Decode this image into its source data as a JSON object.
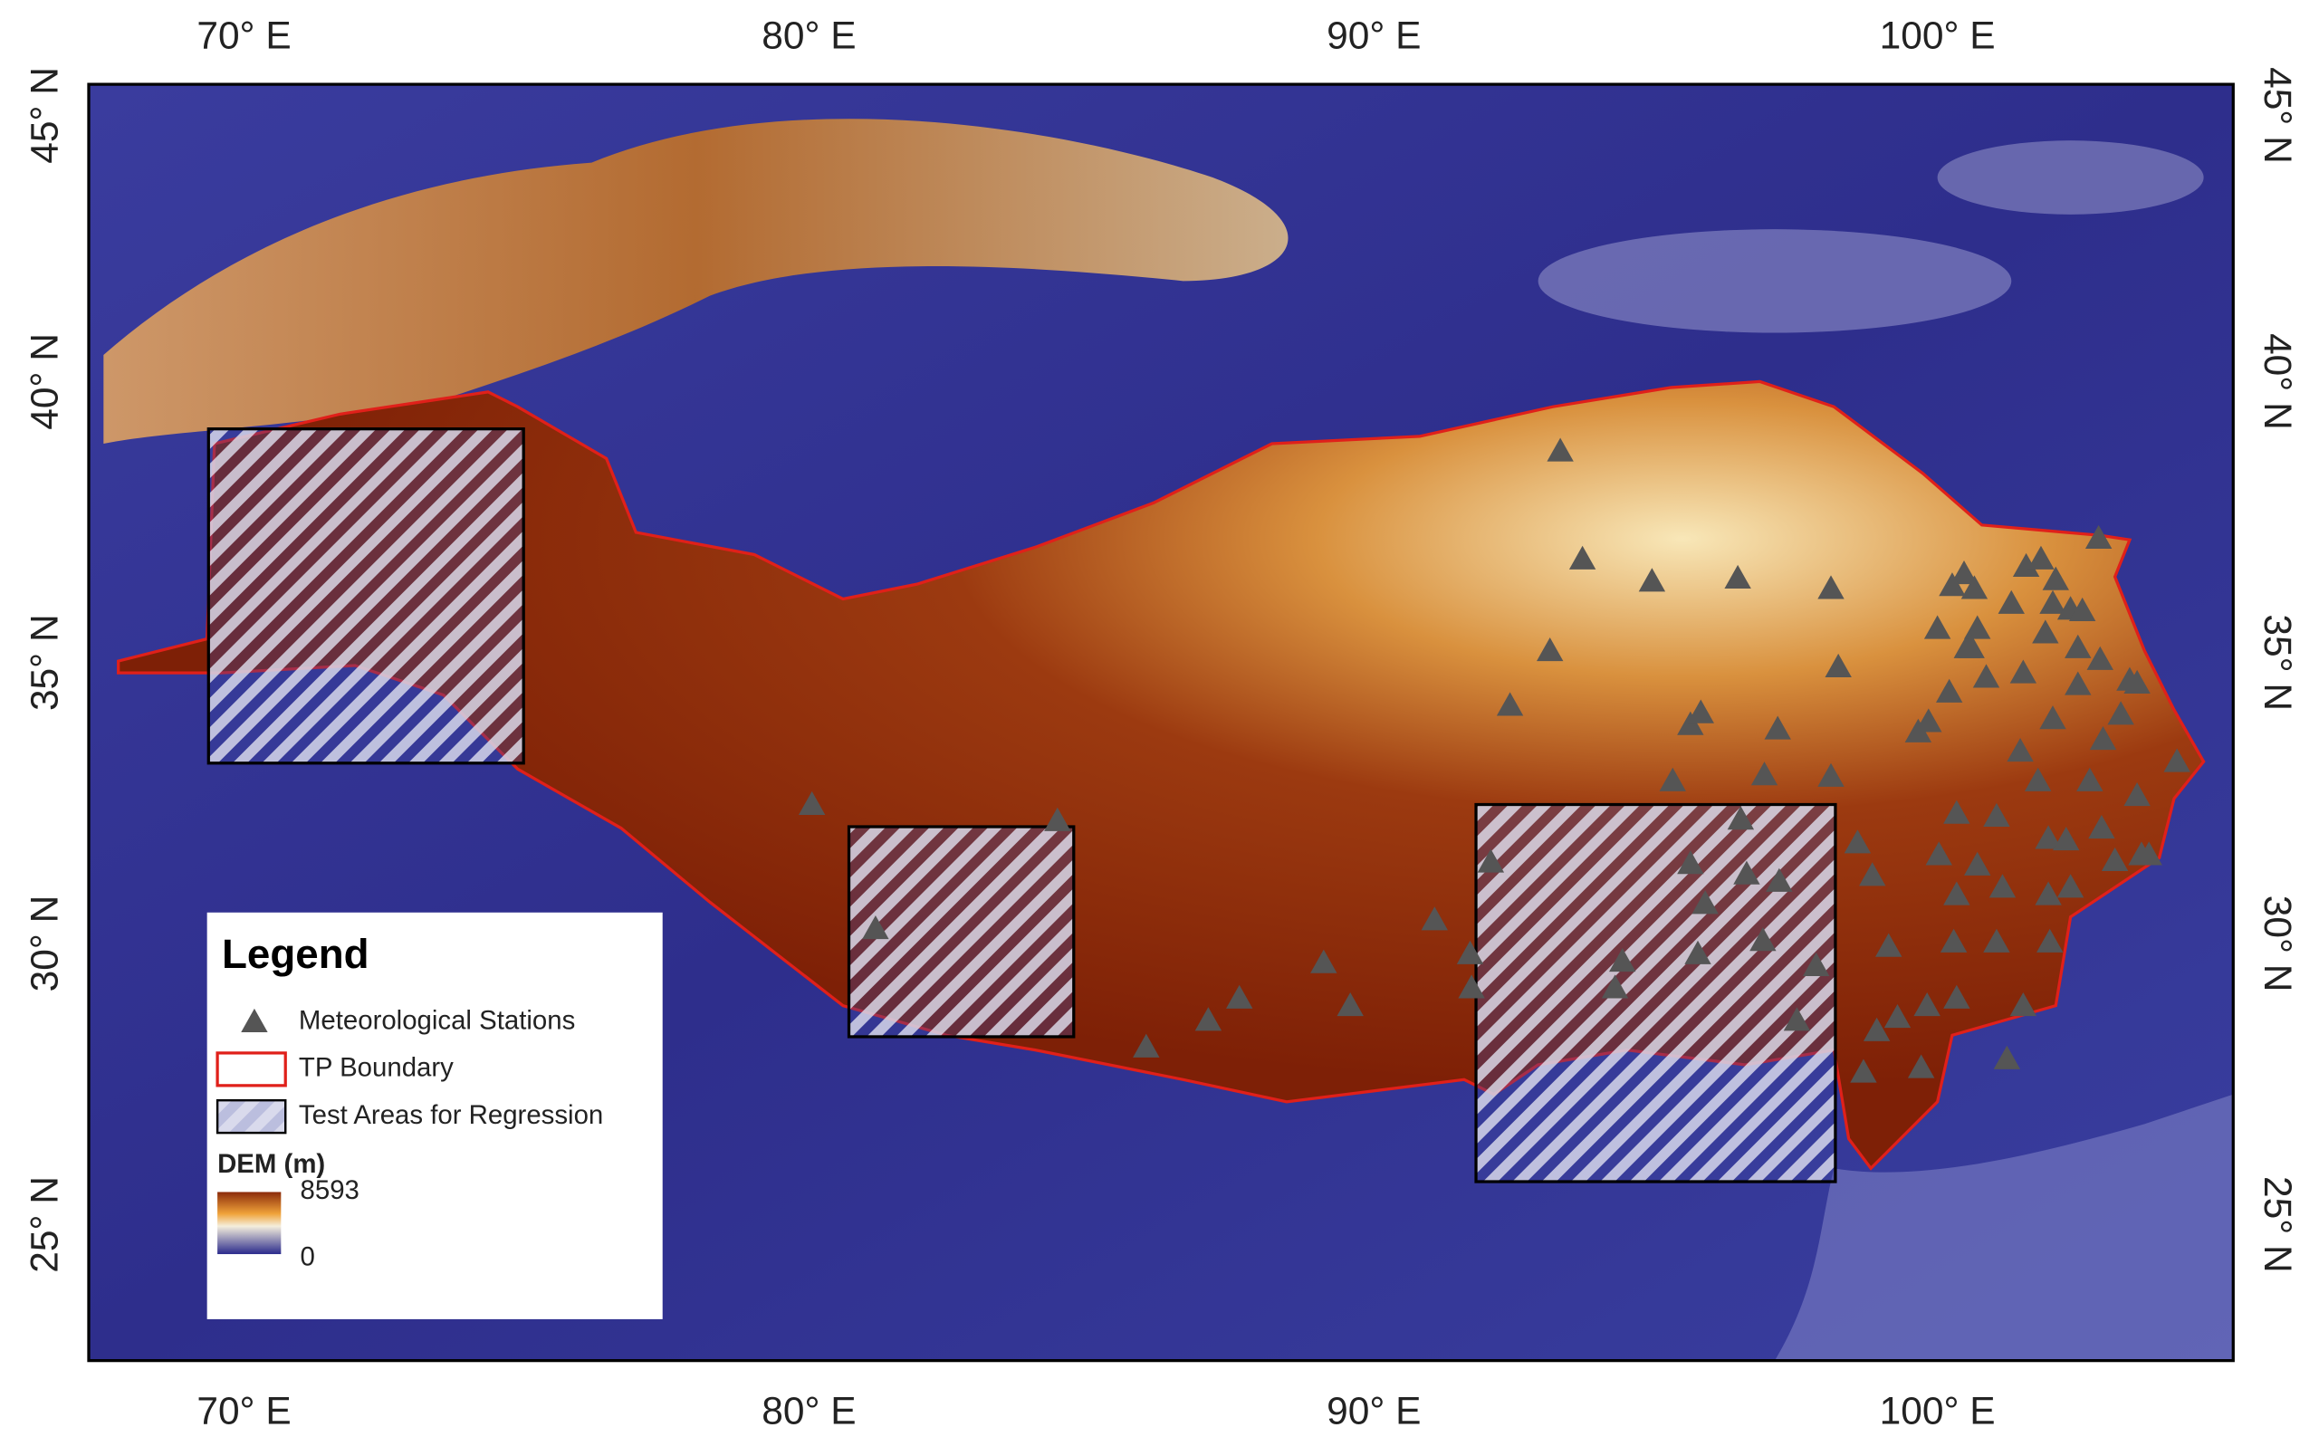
{
  "map": {
    "top_axis": [
      "70° E",
      "80° E",
      "90° E",
      "100° E"
    ],
    "bottom_axis": [
      "70° E",
      "80° E",
      "90° E",
      "100° E"
    ],
    "left_axis": [
      "45° N",
      "40° N",
      "35° N",
      "30° N",
      "25° N"
    ],
    "right_axis": [
      "45° N",
      "40° N",
      "35° N",
      "30° N",
      "25° N"
    ],
    "legend": {
      "title": "Legend",
      "items": [
        "Meteorological Stations",
        "TP Boundary",
        "Test Areas for Regression"
      ],
      "dem_title": "DEM (m)",
      "dem_max": 8593,
      "dem_min": 0
    }
  }
}
